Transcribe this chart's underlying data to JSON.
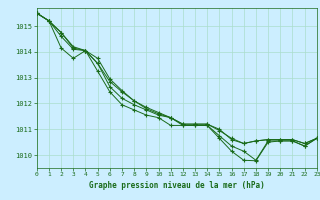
{
  "bg_color": "#cceeff",
  "grid_color": "#aaddcc",
  "line_color": "#1a6b1a",
  "xlabel": "Graphe pression niveau de la mer (hPa)",
  "xlim": [
    0,
    23
  ],
  "ylim": [
    1009.5,
    1015.7
  ],
  "yticks": [
    1010,
    1011,
    1012,
    1013,
    1014,
    1015
  ],
  "xticks": [
    0,
    1,
    2,
    3,
    4,
    5,
    6,
    7,
    8,
    9,
    10,
    11,
    12,
    13,
    14,
    15,
    16,
    17,
    18,
    19,
    20,
    21,
    22,
    23
  ],
  "series": [
    [
      1015.5,
      1015.2,
      1014.6,
      1014.1,
      1014.05,
      1013.55,
      1012.65,
      1012.2,
      1011.95,
      1011.75,
      1011.55,
      1011.45,
      1011.15,
      1011.15,
      1011.15,
      1010.75,
      1010.35,
      1010.15,
      1009.8,
      1010.55,
      1010.55,
      1010.55,
      1010.35,
      1010.65
    ],
    [
      1015.5,
      1015.2,
      1014.75,
      1014.2,
      1014.05,
      1013.55,
      1012.85,
      1012.45,
      1012.1,
      1011.8,
      1011.6,
      1011.45,
      1011.2,
      1011.2,
      1011.2,
      1011.0,
      1010.6,
      1010.45,
      1010.55,
      1010.6,
      1010.6,
      1010.6,
      1010.45,
      1010.65
    ],
    [
      1015.5,
      1015.2,
      1014.75,
      1014.15,
      1014.05,
      1013.75,
      1012.95,
      1012.5,
      1012.1,
      1011.85,
      1011.65,
      1011.45,
      1011.2,
      1011.2,
      1011.2,
      1010.95,
      1010.65,
      1010.45,
      1010.55,
      1010.6,
      1010.6,
      1010.6,
      1010.45,
      1010.65
    ],
    [
      1015.5,
      1015.2,
      1014.15,
      1013.75,
      1014.05,
      1013.25,
      1012.45,
      1011.95,
      1011.75,
      1011.55,
      1011.45,
      1011.15,
      1011.15,
      1011.15,
      1011.15,
      1010.65,
      1010.15,
      1009.8,
      1009.78,
      1010.5,
      1010.55,
      1010.55,
      1010.35,
      1010.65
    ]
  ]
}
